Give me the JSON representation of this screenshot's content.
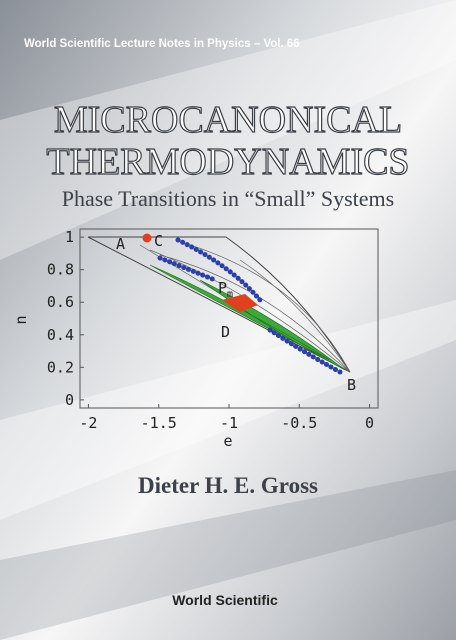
{
  "header": {
    "series": "World Scientific Lecture Notes in Physics – Vol. 66"
  },
  "title": {
    "lines": [
      "MICROCANONICAL",
      "THERMODYNAMICS"
    ],
    "subtitle": "Phase Transitions in “Small” Systems"
  },
  "figure": {
    "xlabel": "e",
    "ylabel": "n",
    "xlim": [
      -2.06,
      0.06
    ],
    "ylim": [
      -0.05,
      1.05
    ],
    "xticks": [
      -2,
      -1.5,
      -1,
      -0.5,
      0
    ],
    "yticks": [
      0,
      0.2,
      0.4,
      0.6,
      0.8,
      1
    ],
    "labels": [
      "A",
      "B",
      "C",
      "D"
    ],
    "pm": {
      "main": "P",
      "sub": "m"
    }
  },
  "author": "Dieter H. E. Gross",
  "publisher": "World Scientific"
}
